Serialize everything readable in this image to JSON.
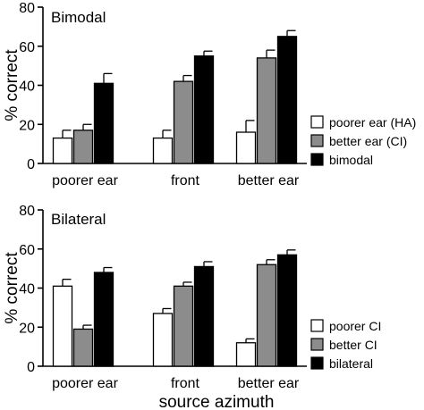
{
  "figure": {
    "xlabel": "source azimuth"
  },
  "chart_data": [
    {
      "type": "bar",
      "title": "Bimodal",
      "xlabel": "",
      "ylabel": "% correct",
      "ylim": [
        0,
        80
      ],
      "yticks": [
        0,
        20,
        40,
        60,
        80
      ],
      "grid": false,
      "legend_position": "right",
      "categories": [
        "poorer ear",
        "front",
        "better ear"
      ],
      "series": [
        {
          "name": "poorer ear (HA)",
          "color": "#ffffff",
          "values": [
            13,
            13,
            16
          ],
          "errors": [
            4,
            4,
            6
          ]
        },
        {
          "name": "better ear (CI)",
          "color": "#8c8c8c",
          "values": [
            17,
            42,
            54
          ],
          "errors": [
            3,
            3,
            4
          ]
        },
        {
          "name": "bimodal",
          "color": "#000000",
          "values": [
            41,
            55,
            65
          ],
          "errors": [
            5,
            2.5,
            3
          ]
        }
      ]
    },
    {
      "type": "bar",
      "title": "Bilateral",
      "xlabel": "",
      "ylabel": "% correct",
      "ylim": [
        0,
        80
      ],
      "yticks": [
        0,
        20,
        40,
        60,
        80
      ],
      "grid": false,
      "legend_position": "right",
      "categories": [
        "poorer ear",
        "front",
        "better ear"
      ],
      "series": [
        {
          "name": "poorer CI",
          "color": "#ffffff",
          "values": [
            41,
            27,
            12
          ],
          "errors": [
            3.5,
            2.5,
            2
          ]
        },
        {
          "name": "better CI",
          "color": "#8c8c8c",
          "values": [
            19,
            41,
            52
          ],
          "errors": [
            2,
            2,
            2.5
          ]
        },
        {
          "name": "bilateral",
          "color": "#000000",
          "values": [
            48,
            51,
            57
          ],
          "errors": [
            2.5,
            2.5,
            2.5
          ]
        }
      ]
    }
  ]
}
